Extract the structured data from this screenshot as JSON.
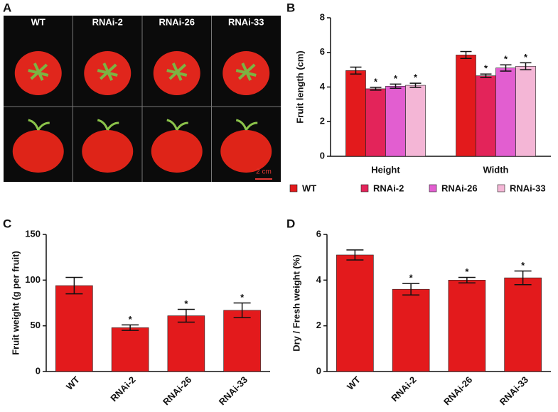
{
  "chart_data": [
    {
      "type": "image",
      "panel": "A",
      "columns": [
        "WT",
        "RNAi-2",
        "RNAi-26",
        "RNAi-33"
      ],
      "scale_bar": "2 cm"
    },
    {
      "type": "grouped-bar",
      "panel": "B",
      "y_label": "Fruit length (cm)",
      "categories": [
        "Height",
        "Width"
      ],
      "series": [
        {
          "name": "WT",
          "color": "#e31a1c",
          "values": [
            4.95,
            5.85
          ],
          "errors": [
            0.2,
            0.2
          ]
        },
        {
          "name": "RNAi-2",
          "color": "#e3245a",
          "values": [
            3.9,
            4.65
          ],
          "errors": [
            0.08,
            0.1
          ],
          "significance": "*"
        },
        {
          "name": "RNAi-26",
          "color": "#e25ed0",
          "values": [
            4.05,
            5.1
          ],
          "errors": [
            0.12,
            0.18
          ],
          "significance": "*"
        },
        {
          "name": "RNAi-33",
          "color": "#f4b6d6",
          "values": [
            4.1,
            5.2
          ],
          "errors": [
            0.12,
            0.2
          ],
          "significance": "*"
        }
      ],
      "ylim": [
        0,
        8
      ],
      "yticks": [
        0,
        2,
        4,
        6,
        8
      ]
    },
    {
      "type": "bar",
      "panel": "C",
      "y_label": "Fruit weight (g per fruit)",
      "categories": [
        "WT",
        "RNAi-2",
        "RNAi-26",
        "RNAi-33"
      ],
      "values": [
        94,
        48,
        61,
        67
      ],
      "errors": [
        9,
        3,
        7,
        8
      ],
      "significance": [
        null,
        "*",
        "*",
        "*"
      ],
      "color": "#e31a1c",
      "ylim": [
        0,
        150
      ],
      "yticks": [
        0,
        50,
        100,
        150
      ]
    },
    {
      "type": "bar",
      "panel": "D",
      "y_label": "Dry / Fresh weight (%)",
      "categories": [
        "WT",
        "RNAi-2",
        "RNAi-26",
        "RNAi-33"
      ],
      "values": [
        5.1,
        3.6,
        4.0,
        4.1
      ],
      "errors": [
        0.22,
        0.25,
        0.12,
        0.3
      ],
      "significance": [
        null,
        "*",
        "*",
        "*"
      ],
      "color": "#e31a1c",
      "ylim": [
        0,
        6
      ],
      "yticks": [
        0,
        2,
        4,
        6
      ]
    }
  ]
}
